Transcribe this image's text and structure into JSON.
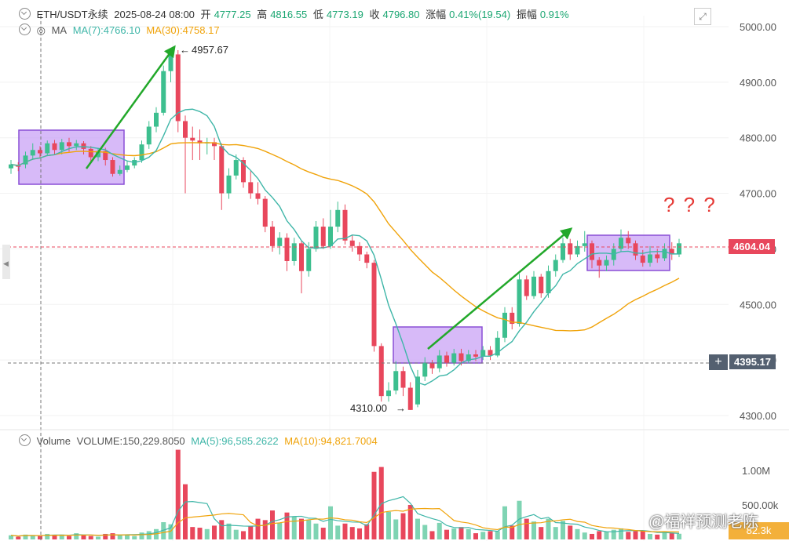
{
  "header": {
    "symbol": "ETH/USDT永续",
    "datetime": "2025-08-24 08:00",
    "open_label": "开",
    "open": "4777.25",
    "high_label": "高",
    "high": "4816.55",
    "low_label": "低",
    "low": "4773.19",
    "close_label": "收",
    "close": "4796.80",
    "change_label": "涨幅",
    "change": "0.41%(19.54)",
    "amplitude_label": "振幅",
    "amplitude": "0.91%"
  },
  "ma_row": {
    "label": "MA",
    "ma7": "MA(7):4766.10",
    "ma30": "MA(30):4758.17"
  },
  "volume_row": {
    "label": "Volume",
    "value": "VOLUME:150,229.8050",
    "ma5": "MA(5):96,585.2622",
    "ma10": "MA(10):94,821.7004"
  },
  "price_axis": {
    "ticks": [
      "5000.00",
      "4900.00",
      "4800.00",
      "4700.00",
      "4600.00",
      "4500.00",
      "4400.00",
      "4300.00"
    ],
    "current_price": "4604.04",
    "crosshair_price": "4395.17"
  },
  "volume_axis": {
    "ticks": [
      "1.00M",
      "500.00k"
    ],
    "tag": "82.3k"
  },
  "annotations": {
    "high_label": "4957.67",
    "low_label": "4310.00",
    "question": "? ? ?"
  },
  "watermark": "@福祥预测老陈",
  "colors": {
    "up": "#3dbf8f",
    "down": "#e8475c",
    "ma7": "#3fb6a8",
    "ma30": "#f0a30a",
    "box_fill": "#c9a3f5",
    "box_stroke": "#8a4fd6",
    "arrow": "#22a82a",
    "price_tag": "#e8475c",
    "crosshair_tag": "#546070"
  },
  "chart_data": {
    "type": "candlestick",
    "y_range": [
      4255,
      5025
    ],
    "volume_range": [
      0,
      1300000
    ],
    "candles": [
      [
        4745,
        4752,
        4735,
        4760
      ],
      [
        4750,
        4748,
        4740,
        4756
      ],
      [
        4752,
        4768,
        4745,
        4775
      ],
      [
        4768,
        4778,
        4760,
        4790
      ],
      [
        4778,
        4772,
        4765,
        4785
      ],
      [
        4772,
        4790,
        4768,
        4795
      ],
      [
        4790,
        4778,
        4770,
        4796
      ],
      [
        4778,
        4792,
        4770,
        4798
      ],
      [
        4792,
        4785,
        4775,
        4800
      ],
      [
        4785,
        4790,
        4778,
        4796
      ],
      [
        4790,
        4780,
        4770,
        4794
      ],
      [
        4780,
        4765,
        4755,
        4785
      ],
      [
        4765,
        4776,
        4758,
        4782
      ],
      [
        4776,
        4760,
        4750,
        4782
      ],
      [
        4760,
        4735,
        4730,
        4765
      ],
      [
        4735,
        4742,
        4732,
        4750
      ],
      [
        4742,
        4750,
        4738,
        4758
      ],
      [
        4750,
        4760,
        4745,
        4765
      ],
      [
        4760,
        4788,
        4755,
        4795
      ],
      [
        4788,
        4820,
        4780,
        4830
      ],
      [
        4820,
        4845,
        4810,
        4855
      ],
      [
        4845,
        4920,
        4840,
        4930
      ],
      [
        4920,
        4950,
        4900,
        4960
      ],
      [
        4950,
        4830,
        4810,
        4957.67
      ],
      [
        4830,
        4800,
        4700,
        4840
      ],
      [
        4800,
        4795,
        4760,
        4820
      ],
      [
        4795,
        4790,
        4760,
        4815
      ],
      [
        4790,
        4792,
        4770,
        4800
      ],
      [
        4792,
        4785,
        4760,
        4800
      ],
      [
        4785,
        4700,
        4670,
        4790
      ],
      [
        4700,
        4732,
        4690,
        4745
      ],
      [
        4732,
        4760,
        4725,
        4770
      ],
      [
        4760,
        4720,
        4710,
        4765
      ],
      [
        4720,
        4700,
        4690,
        4740
      ],
      [
        4700,
        4690,
        4680,
        4720
      ],
      [
        4690,
        4640,
        4630,
        4695
      ],
      [
        4640,
        4605,
        4595,
        4650
      ],
      [
        4605,
        4620,
        4590,
        4630
      ],
      [
        4620,
        4578,
        4560,
        4628
      ],
      [
        4578,
        4610,
        4570,
        4620
      ],
      [
        4610,
        4560,
        4520,
        4615
      ],
      [
        4560,
        4600,
        4550,
        4612
      ],
      [
        4600,
        4640,
        4595,
        4650
      ],
      [
        4640,
        4605,
        4600,
        4655
      ],
      [
        4605,
        4640,
        4600,
        4670
      ],
      [
        4640,
        4670,
        4630,
        4685
      ],
      [
        4670,
        4615,
        4608,
        4680
      ],
      [
        4615,
        4605,
        4595,
        4625
      ],
      [
        4605,
        4590,
        4578,
        4612
      ],
      [
        4590,
        4575,
        4565,
        4595
      ],
      [
        4575,
        4425,
        4415,
        4580
      ],
      [
        4425,
        4335,
        4325,
        4430
      ],
      [
        4335,
        4345,
        4325,
        4360
      ],
      [
        4345,
        4380,
        4338,
        4398
      ],
      [
        4380,
        4350,
        4335,
        4388
      ],
      [
        4350,
        4310,
        4310,
        4360
      ],
      [
        4320,
        4370,
        4315,
        4382
      ],
      [
        4370,
        4395,
        4362,
        4405
      ],
      [
        4395,
        4385,
        4375,
        4400
      ],
      [
        4385,
        4408,
        4378,
        4418
      ],
      [
        4408,
        4395,
        4388,
        4415
      ],
      [
        4395,
        4412,
        4390,
        4420
      ],
      [
        4412,
        4398,
        4390,
        4420
      ],
      [
        4398,
        4410,
        4394,
        4418
      ],
      [
        4410,
        4406,
        4398,
        4418
      ],
      [
        4406,
        4418,
        4400,
        4425
      ],
      [
        4418,
        4408,
        4400,
        4425
      ],
      [
        4408,
        4440,
        4405,
        4452
      ],
      [
        4440,
        4485,
        4432,
        4495
      ],
      [
        4485,
        4465,
        4455,
        4495
      ],
      [
        4465,
        4545,
        4460,
        4555
      ],
      [
        4545,
        4515,
        4508,
        4552
      ],
      [
        4515,
        4550,
        4510,
        4560
      ],
      [
        4550,
        4520,
        4512,
        4555
      ],
      [
        4520,
        4560,
        4512,
        4570
      ],
      [
        4560,
        4580,
        4550,
        4590
      ],
      [
        4580,
        4610,
        4575,
        4620
      ],
      [
        4610,
        4590,
        4580,
        4618
      ],
      [
        4590,
        4605,
        4585,
        4615
      ],
      [
        4605,
        4610,
        4595,
        4632
      ],
      [
        4610,
        4580,
        4565,
        4615
      ],
      [
        4580,
        4570,
        4548,
        4585
      ],
      [
        4570,
        4580,
        4560,
        4588
      ],
      [
        4580,
        4600,
        4570,
        4610
      ],
      [
        4600,
        4620,
        4595,
        4635
      ],
      [
        4620,
        4610,
        4600,
        4632
      ],
      [
        4610,
        4588,
        4580,
        4615
      ],
      [
        4588,
        4575,
        4568,
        4598
      ],
      [
        4575,
        4590,
        4568,
        4605
      ],
      [
        4590,
        4583,
        4575,
        4600
      ],
      [
        4583,
        4600,
        4578,
        4610
      ],
      [
        4600,
        4590,
        4580,
        4612
      ],
      [
        4590,
        4610,
        4585,
        4618
      ]
    ],
    "volumes": [
      60000,
      40000,
      70000,
      60000,
      50000,
      80000,
      60000,
      70000,
      50000,
      90000,
      60000,
      50000,
      40000,
      80000,
      90000,
      60000,
      70000,
      50000,
      100000,
      120000,
      150000,
      250000,
      220000,
      1300000,
      800000,
      180000,
      170000,
      150000,
      200000,
      280000,
      230000,
      140000,
      120000,
      190000,
      300000,
      280000,
      420000,
      240000,
      390000,
      330000,
      300000,
      280000,
      230000,
      170000,
      480000,
      200000,
      230000,
      180000,
      160000,
      220000,
      980000,
      1050000,
      400000,
      290000,
      380000,
      500000,
      300000,
      210000,
      120000,
      240000,
      140000,
      160000,
      180000,
      150000,
      90000,
      110000,
      120000,
      120000,
      480000,
      200000,
      560000,
      300000,
      260000,
      180000,
      300000,
      180000,
      270000,
      200000,
      150000,
      100000,
      80000,
      120000,
      110000,
      140000,
      160000,
      110000,
      120000,
      120000,
      80000,
      70000,
      110000,
      90000,
      82300
    ]
  }
}
